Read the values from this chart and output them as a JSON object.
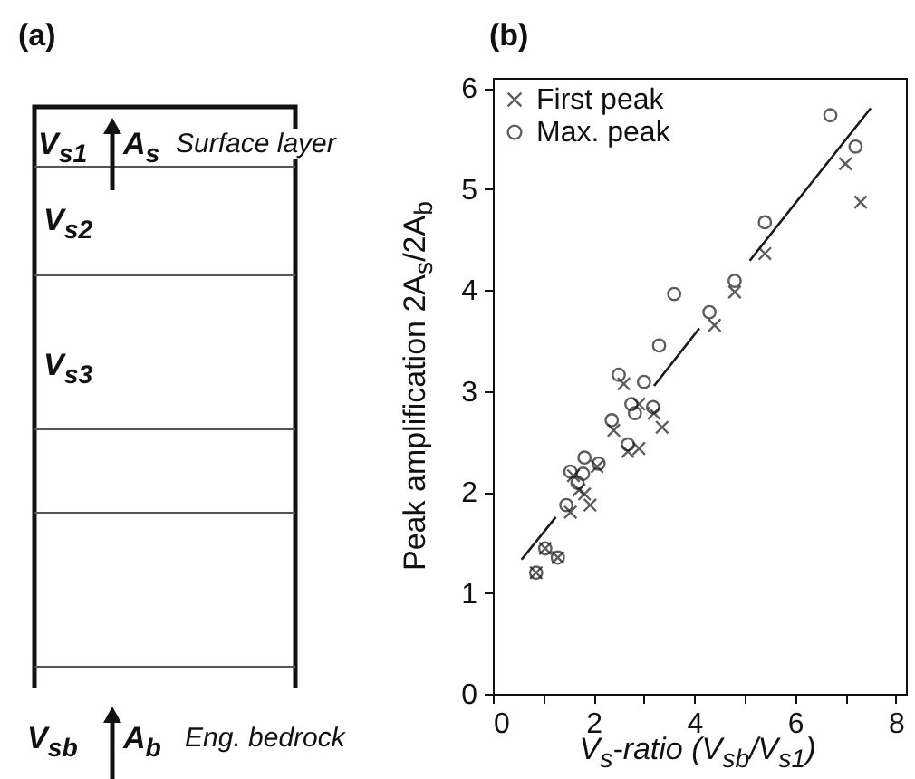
{
  "chart_data": [
    {
      "type": "other",
      "title": "(a)",
      "annotations": [
        "V$_{s1}$",
        "A$_{s}$",
        "Surface layer",
        "V$_{s2}$",
        "V$_{s3}$",
        "V$_{sb}$",
        "A$_{b}$",
        "Eng. bedrock"
      ]
    },
    {
      "type": "scatter",
      "title": "(b)",
      "xlabel": "V$_{s}$-ratio  (V$_{sb}$/V$_{s1}$)",
      "ylabel": "Peak amplification  2A$_{s}$/2A$_{b}$",
      "xlim": [
        0,
        8.2
      ],
      "xticks": [
        0,
        {
          "value": 1,
          "label": null
        },
        2,
        {
          "value": 3,
          "label": null
        },
        4,
        {
          "value": 5,
          "label": null
        },
        6,
        {
          "value": 7,
          "label": null
        },
        8
      ],
      "ylim": [
        0,
        6.1
      ],
      "yticks": [
        0,
        1,
        2,
        3,
        4,
        5,
        6
      ],
      "legend": "top left",
      "series": [
        {
          "name": "First peak",
          "color": "#1a1a1a",
          "marker": "cross",
          "x": [
            7.0,
            7.3,
            5.4,
            4.8,
            4.4,
            2.6,
            2.9,
            3.2,
            3.36,
            2.4,
            2.9,
            2.68,
            2.07,
            1.6,
            1.82,
            1.71,
            1.93,
            1.54,
            1.04,
            1.29,
            0.86
          ],
          "values": [
            5.25,
            4.87,
            4.36,
            3.98,
            3.65,
            3.07,
            2.87,
            2.78,
            2.64,
            2.61,
            2.43,
            2.4,
            2.25,
            2.16,
            1.98,
            2.02,
            1.87,
            1.8,
            1.44,
            1.35,
            1.2
          ]
        },
        {
          "name": "Max. peak",
          "color": "#1a1a1a",
          "marker": "circle",
          "x": [
            6.7,
            7.2,
            5.4,
            4.8,
            3.6,
            4.3,
            3.3,
            2.5,
            3.0,
            2.75,
            3.18,
            2.82,
            2.36,
            2.68,
            1.82,
            2.1,
            1.54,
            1.79,
            1.68,
            1.46,
            1.04,
            1.29,
            0.86
          ],
          "values": [
            5.73,
            5.42,
            4.67,
            4.09,
            3.96,
            3.78,
            3.45,
            3.16,
            3.09,
            2.87,
            2.84,
            2.78,
            2.71,
            2.47,
            2.34,
            2.28,
            2.2,
            2.18,
            2.09,
            1.87,
            1.44,
            1.35,
            1.2
          ]
        },
        {
          "type": "line",
          "color": "#1a1a1a",
          "marker": "none",
          "x": [
            0.57,
            1.25,
            2.2,
            3.2,
            4.1,
            4.6,
            5.1,
            7.5
          ],
          "values": [
            1.33,
            1.75,
            null,
            3.05,
            3.62,
            null,
            4.29,
            5.8
          ]
        }
      ]
    }
  ]
}
